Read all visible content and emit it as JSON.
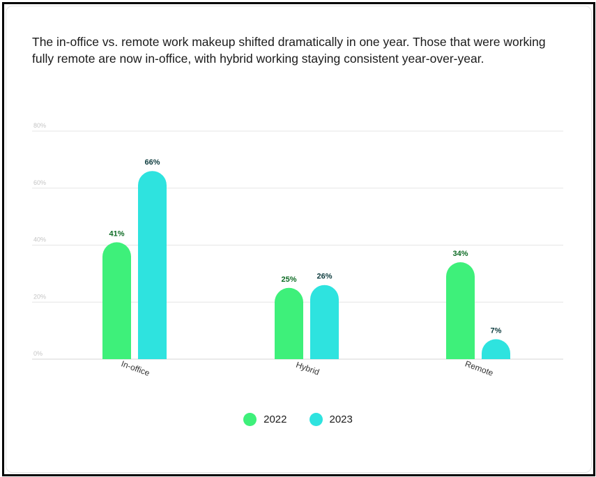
{
  "description_text": "The in-office vs. remote work makeup shifted dramatically in one year. Those that were working fully remote are now in-office, with hybrid working staying consistent year-over-year.",
  "chart_data": {
    "type": "bar",
    "title": "",
    "xlabel": "",
    "ylabel": "",
    "categories": [
      "In-office",
      "Hybrid",
      "Remote"
    ],
    "series": [
      {
        "name": "2022",
        "values": [
          41,
          25,
          34
        ],
        "labels": [
          "41%",
          "25%",
          "34%"
        ],
        "color": "#3ef07a",
        "label_color": "#0d6b24"
      },
      {
        "name": "2023",
        "values": [
          66,
          26,
          7
        ],
        "labels": [
          "66%",
          "26%",
          "7%"
        ],
        "color": "#2ee3df",
        "label_color": "#0d3b3e"
      }
    ],
    "ylim": [
      0,
      80
    ],
    "yticks": [
      "0%",
      "20%",
      "40%",
      "60%",
      "80%"
    ],
    "ytick_values": [
      0,
      20,
      40,
      60,
      80
    ],
    "grid": true,
    "legend_position": "bottom-center"
  }
}
